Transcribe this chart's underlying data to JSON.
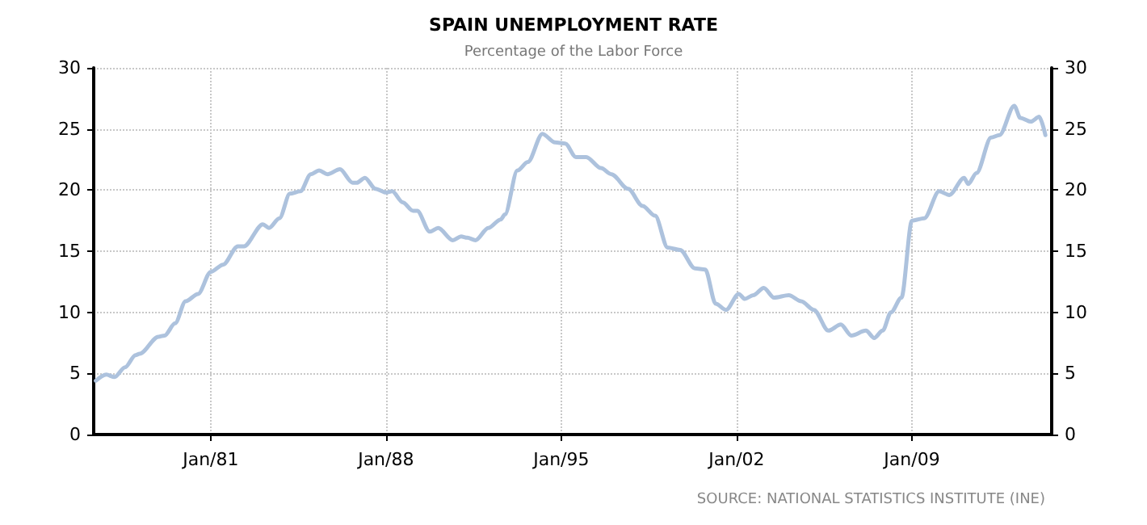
{
  "chart_data": {
    "type": "line",
    "title": "SPAIN UNEMPLOYMENT RATE",
    "subtitle": "Percentage of the Labor Force",
    "annotations": [
      "SOURCE: NATIONAL STATISTICS INSTITUTE (INE)"
    ],
    "x": [
      "1976-06",
      "1976-11",
      "1977-03",
      "1977-08",
      "1978-01",
      "1978-03",
      "1978-12",
      "1979-03",
      "1979-08",
      "1980-01",
      "1980-07",
      "1981-01",
      "1981-07",
      "1982-02",
      "1982-05",
      "1983-02",
      "1983-05",
      "1983-10",
      "1984-03",
      "1984-08",
      "1985-01",
      "1985-05",
      "1985-09",
      "1986-03",
      "1986-09",
      "1986-11",
      "1987-03",
      "1987-08",
      "1988-01",
      "1988-04",
      "1988-09",
      "1989-02",
      "1989-04",
      "1989-10",
      "1990-02",
      "1990-09",
      "1991-01",
      "1991-04",
      "1991-08",
      "1992-02",
      "1992-08",
      "1992-10",
      "1993-04",
      "1993-09",
      "1994-04",
      "1994-10",
      "1995-03",
      "1995-08",
      "1996-01",
      "1996-08",
      "1997-01",
      "1997-09",
      "1998-04",
      "1998-10",
      "1999-04",
      "1999-10",
      "2000-05",
      "2000-10",
      "2001-03",
      "2001-08",
      "2002-02",
      "2002-05",
      "2002-09",
      "2003-02",
      "2003-07",
      "2004-02",
      "2004-08",
      "2005-02",
      "2005-09",
      "2006-03",
      "2006-08",
      "2007-03",
      "2007-07",
      "2007-11",
      "2008-03",
      "2008-08",
      "2009-01",
      "2009-07",
      "2010-02",
      "2010-07",
      "2011-02",
      "2011-04",
      "2011-08",
      "2012-03",
      "2012-07",
      "2013-02",
      "2013-05",
      "2013-10",
      "2014-02",
      "2014-05"
    ],
    "series": [
      {
        "color": "#adc2dd",
        "values": [
          4.4,
          4.9,
          4.7,
          5.5,
          6.5,
          6.6,
          8.0,
          8.1,
          9.1,
          10.9,
          11.5,
          13.3,
          13.9,
          15.4,
          15.4,
          17.2,
          16.9,
          17.7,
          19.7,
          19.9,
          21.3,
          21.6,
          21.3,
          21.7,
          20.6,
          20.6,
          21.0,
          20.1,
          19.8,
          19.9,
          19.0,
          18.3,
          18.3,
          16.6,
          16.9,
          15.9,
          16.2,
          16.1,
          15.9,
          16.9,
          17.6,
          18.0,
          21.6,
          22.3,
          24.6,
          23.9,
          23.8,
          22.7,
          22.7,
          21.8,
          21.3,
          20.1,
          18.7,
          17.9,
          15.3,
          15.1,
          13.6,
          13.5,
          10.7,
          10.2,
          11.5,
          11.1,
          11.4,
          12.0,
          11.2,
          11.4,
          10.9,
          10.2,
          8.5,
          9.0,
          8.1,
          8.5,
          7.9,
          8.5,
          10.0,
          11.2,
          17.5,
          17.7,
          19.9,
          19.6,
          21.0,
          20.5,
          21.4,
          24.3,
          24.5,
          26.9,
          25.9,
          25.6,
          26.0,
          24.5
        ]
      }
    ],
    "xlim": [
      "1976-05",
      "2014-08"
    ],
    "xticks": [
      {
        "value": "1981-01",
        "label": "Jan/81"
      },
      {
        "value": "1988-01",
        "label": "Jan/88"
      },
      {
        "value": "1995-01",
        "label": "Jan/95"
      },
      {
        "value": "2002-01",
        "label": "Jan/02"
      },
      {
        "value": "2009-01",
        "label": "Jan/09"
      }
    ],
    "ylim": [
      0,
      30
    ],
    "yticks": [
      0,
      5,
      10,
      15,
      20,
      25,
      30
    ],
    "y2lim": [
      0,
      30
    ],
    "y2ticks": [
      0,
      5,
      10,
      15,
      20,
      25,
      30
    ],
    "grid": true,
    "marker": "none",
    "line_style": "solid"
  }
}
